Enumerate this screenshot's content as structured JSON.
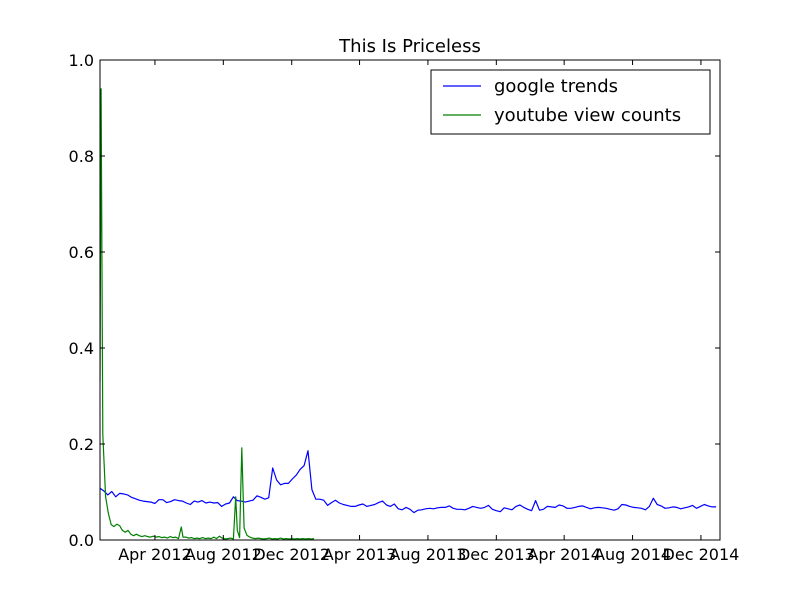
{
  "chart_data": {
    "type": "line",
    "title": "This Is Priceless",
    "xlabel": "",
    "ylabel": "",
    "xlim": [
      "2011-12-25",
      "2015-01-04"
    ],
    "ylim": [
      0.0,
      1.0
    ],
    "x_ticks": [
      "2012-04-01",
      "2012-08-01",
      "2012-12-01",
      "2013-04-01",
      "2013-08-01",
      "2013-12-01",
      "2014-04-01",
      "2014-08-01",
      "2014-12-01"
    ],
    "x_tick_labels": [
      "Apr 2012",
      "Aug 2012",
      "Dec 2012",
      "Apr 2013",
      "Aug 2013",
      "Dec 2013",
      "Apr 2014",
      "Aug 2014",
      "Dec 2014"
    ],
    "y_ticks": [
      0.0,
      0.2,
      0.4,
      0.6,
      0.8,
      1.0
    ],
    "y_tick_labels": [
      "0.0",
      "0.2",
      "0.4",
      "0.6",
      "0.8",
      "1.0"
    ],
    "grid": false,
    "legend_position": "top-right",
    "series": [
      {
        "name": "google trends",
        "color": "#0000ff",
        "points": [
          [
            "2011-12-25",
            0.108
          ],
          [
            "2012-01-01",
            0.102
          ],
          [
            "2012-01-08",
            0.094
          ],
          [
            "2012-01-15",
            0.101
          ],
          [
            "2012-01-22",
            0.09
          ],
          [
            "2012-01-29",
            0.097
          ],
          [
            "2012-02-05",
            0.096
          ],
          [
            "2012-02-12",
            0.094
          ],
          [
            "2012-02-19",
            0.089
          ],
          [
            "2012-02-26",
            0.086
          ],
          [
            "2012-03-04",
            0.083
          ],
          [
            "2012-03-11",
            0.081
          ],
          [
            "2012-03-18",
            0.08
          ],
          [
            "2012-03-25",
            0.079
          ],
          [
            "2012-04-01",
            0.076
          ],
          [
            "2012-04-08",
            0.084
          ],
          [
            "2012-04-15",
            0.084
          ],
          [
            "2012-04-22",
            0.078
          ],
          [
            "2012-04-29",
            0.08
          ],
          [
            "2012-05-06",
            0.084
          ],
          [
            "2012-05-13",
            0.082
          ],
          [
            "2012-05-20",
            0.081
          ],
          [
            "2012-05-27",
            0.077
          ],
          [
            "2012-06-03",
            0.074
          ],
          [
            "2012-06-10",
            0.081
          ],
          [
            "2012-06-17",
            0.079
          ],
          [
            "2012-06-24",
            0.082
          ],
          [
            "2012-07-01",
            0.077
          ],
          [
            "2012-07-08",
            0.079
          ],
          [
            "2012-07-15",
            0.077
          ],
          [
            "2012-07-22",
            0.078
          ],
          [
            "2012-07-29",
            0.07
          ],
          [
            "2012-08-05",
            0.075
          ],
          [
            "2012-08-12",
            0.077
          ],
          [
            "2012-08-19",
            0.09
          ],
          [
            "2012-08-26",
            0.082
          ],
          [
            "2012-09-02",
            0.081
          ],
          [
            "2012-09-09",
            0.079
          ],
          [
            "2012-09-16",
            0.081
          ],
          [
            "2012-09-23",
            0.083
          ],
          [
            "2012-09-30",
            0.092
          ],
          [
            "2012-10-07",
            0.089
          ],
          [
            "2012-10-14",
            0.085
          ],
          [
            "2012-10-21",
            0.088
          ],
          [
            "2012-10-28",
            0.15
          ],
          [
            "2012-11-04",
            0.125
          ],
          [
            "2012-11-11",
            0.115
          ],
          [
            "2012-11-18",
            0.118
          ],
          [
            "2012-11-25",
            0.118
          ],
          [
            "2012-12-02",
            0.127
          ],
          [
            "2012-12-09",
            0.135
          ],
          [
            "2012-12-16",
            0.147
          ],
          [
            "2012-12-23",
            0.155
          ],
          [
            "2012-12-30",
            0.186
          ],
          [
            "2013-01-06",
            0.105
          ],
          [
            "2013-01-13",
            0.085
          ],
          [
            "2013-01-20",
            0.085
          ],
          [
            "2013-01-27",
            0.083
          ],
          [
            "2013-02-03",
            0.072
          ],
          [
            "2013-02-10",
            0.078
          ],
          [
            "2013-02-17",
            0.083
          ],
          [
            "2013-02-24",
            0.077
          ],
          [
            "2013-03-03",
            0.074
          ],
          [
            "2013-03-10",
            0.072
          ],
          [
            "2013-03-17",
            0.07
          ],
          [
            "2013-03-24",
            0.07
          ],
          [
            "2013-03-31",
            0.073
          ],
          [
            "2013-04-07",
            0.075
          ],
          [
            "2013-04-14",
            0.07
          ],
          [
            "2013-04-21",
            0.072
          ],
          [
            "2013-04-28",
            0.074
          ],
          [
            "2013-05-05",
            0.078
          ],
          [
            "2013-05-12",
            0.081
          ],
          [
            "2013-05-19",
            0.073
          ],
          [
            "2013-05-26",
            0.07
          ],
          [
            "2013-06-02",
            0.075
          ],
          [
            "2013-06-09",
            0.065
          ],
          [
            "2013-06-16",
            0.063
          ],
          [
            "2013-06-23",
            0.068
          ],
          [
            "2013-06-30",
            0.064
          ],
          [
            "2013-07-07",
            0.057
          ],
          [
            "2013-07-14",
            0.062
          ],
          [
            "2013-07-21",
            0.063
          ],
          [
            "2013-07-28",
            0.065
          ],
          [
            "2013-08-04",
            0.066
          ],
          [
            "2013-08-11",
            0.065
          ],
          [
            "2013-08-18",
            0.067
          ],
          [
            "2013-08-25",
            0.068
          ],
          [
            "2013-09-01",
            0.068
          ],
          [
            "2013-09-08",
            0.071
          ],
          [
            "2013-09-15",
            0.066
          ],
          [
            "2013-09-22",
            0.064
          ],
          [
            "2013-09-29",
            0.064
          ],
          [
            "2013-10-06",
            0.063
          ],
          [
            "2013-10-13",
            0.066
          ],
          [
            "2013-10-20",
            0.07
          ],
          [
            "2013-10-27",
            0.068
          ],
          [
            "2013-11-03",
            0.066
          ],
          [
            "2013-11-10",
            0.068
          ],
          [
            "2013-11-17",
            0.072
          ],
          [
            "2013-11-24",
            0.064
          ],
          [
            "2013-12-01",
            0.061
          ],
          [
            "2013-12-08",
            0.059
          ],
          [
            "2013-12-15",
            0.067
          ],
          [
            "2013-12-22",
            0.065
          ],
          [
            "2013-12-29",
            0.063
          ],
          [
            "2014-01-05",
            0.07
          ],
          [
            "2014-01-12",
            0.073
          ],
          [
            "2014-01-19",
            0.068
          ],
          [
            "2014-01-26",
            0.064
          ],
          [
            "2014-02-02",
            0.061
          ],
          [
            "2014-02-09",
            0.082
          ],
          [
            "2014-02-16",
            0.062
          ],
          [
            "2014-02-23",
            0.064
          ],
          [
            "2014-03-02",
            0.07
          ],
          [
            "2014-03-09",
            0.069
          ],
          [
            "2014-03-16",
            0.068
          ],
          [
            "2014-03-23",
            0.073
          ],
          [
            "2014-03-30",
            0.071
          ],
          [
            "2014-04-06",
            0.066
          ],
          [
            "2014-04-13",
            0.066
          ],
          [
            "2014-04-20",
            0.068
          ],
          [
            "2014-04-27",
            0.07
          ],
          [
            "2014-05-04",
            0.071
          ],
          [
            "2014-05-11",
            0.068
          ],
          [
            "2014-05-18",
            0.065
          ],
          [
            "2014-05-25",
            0.067
          ],
          [
            "2014-06-01",
            0.068
          ],
          [
            "2014-06-08",
            0.067
          ],
          [
            "2014-06-15",
            0.066
          ],
          [
            "2014-06-22",
            0.064
          ],
          [
            "2014-06-29",
            0.062
          ],
          [
            "2014-07-06",
            0.065
          ],
          [
            "2014-07-13",
            0.074
          ],
          [
            "2014-07-20",
            0.073
          ],
          [
            "2014-07-27",
            0.07
          ],
          [
            "2014-08-03",
            0.068
          ],
          [
            "2014-08-10",
            0.067
          ],
          [
            "2014-08-17",
            0.066
          ],
          [
            "2014-08-24",
            0.063
          ],
          [
            "2014-08-31",
            0.07
          ],
          [
            "2014-09-07",
            0.087
          ],
          [
            "2014-09-14",
            0.074
          ],
          [
            "2014-09-21",
            0.071
          ],
          [
            "2014-09-28",
            0.066
          ],
          [
            "2014-10-05",
            0.067
          ],
          [
            "2014-10-12",
            0.069
          ],
          [
            "2014-10-19",
            0.068
          ],
          [
            "2014-10-26",
            0.065
          ],
          [
            "2014-11-02",
            0.067
          ],
          [
            "2014-11-09",
            0.069
          ],
          [
            "2014-11-16",
            0.072
          ],
          [
            "2014-11-23",
            0.066
          ],
          [
            "2014-11-30",
            0.07
          ],
          [
            "2014-12-07",
            0.074
          ],
          [
            "2014-12-14",
            0.071
          ],
          [
            "2014-12-21",
            0.069
          ],
          [
            "2014-12-28",
            0.069
          ]
        ]
      },
      {
        "name": "youtube view counts",
        "color": "#008000",
        "points": [
          [
            "2011-12-25",
            0.33
          ],
          [
            "2011-12-27",
            0.94
          ],
          [
            "2011-12-30",
            0.22
          ],
          [
            "2012-01-04",
            0.09
          ],
          [
            "2012-01-09",
            0.055
          ],
          [
            "2012-01-14",
            0.032
          ],
          [
            "2012-01-19",
            0.028
          ],
          [
            "2012-01-24",
            0.033
          ],
          [
            "2012-01-29",
            0.03
          ],
          [
            "2012-02-03",
            0.02
          ],
          [
            "2012-02-08",
            0.016
          ],
          [
            "2012-02-13",
            0.02
          ],
          [
            "2012-02-18",
            0.012
          ],
          [
            "2012-02-23",
            0.009
          ],
          [
            "2012-02-28",
            0.012
          ],
          [
            "2012-03-04",
            0.009
          ],
          [
            "2012-03-09",
            0.007
          ],
          [
            "2012-03-14",
            0.009
          ],
          [
            "2012-03-19",
            0.007
          ],
          [
            "2012-03-24",
            0.006
          ],
          [
            "2012-03-29",
            0.008
          ],
          [
            "2012-04-03",
            0.006
          ],
          [
            "2012-04-08",
            0.007
          ],
          [
            "2012-04-13",
            0.005
          ],
          [
            "2012-04-18",
            0.006
          ],
          [
            "2012-04-23",
            0.004
          ],
          [
            "2012-04-28",
            0.007
          ],
          [
            "2012-05-03",
            0.005
          ],
          [
            "2012-05-08",
            0.006
          ],
          [
            "2012-05-13",
            0.003
          ],
          [
            "2012-05-18",
            0.027
          ],
          [
            "2012-05-21",
            0.006
          ],
          [
            "2012-05-26",
            0.006
          ],
          [
            "2012-05-31",
            0.004
          ],
          [
            "2012-06-05",
            0.005
          ],
          [
            "2012-06-10",
            0.003
          ],
          [
            "2012-06-15",
            0.004
          ],
          [
            "2012-06-20",
            0.003
          ],
          [
            "2012-06-25",
            0.005
          ],
          [
            "2012-06-30",
            0.003
          ],
          [
            "2012-07-05",
            0.004
          ],
          [
            "2012-07-10",
            0.003
          ],
          [
            "2012-07-15",
            0.006
          ],
          [
            "2012-07-20",
            0.003
          ],
          [
            "2012-07-25",
            0.008
          ],
          [
            "2012-07-30",
            0.004
          ],
          [
            "2012-08-04",
            0.002
          ],
          [
            "2012-08-09",
            0.003
          ],
          [
            "2012-08-14",
            0.004
          ],
          [
            "2012-08-19",
            0.002
          ],
          [
            "2012-08-23",
            0.09
          ],
          [
            "2012-08-26",
            0.02
          ],
          [
            "2012-08-30",
            0.005
          ],
          [
            "2012-09-03",
            0.192
          ],
          [
            "2012-09-07",
            0.025
          ],
          [
            "2012-09-12",
            0.01
          ],
          [
            "2012-09-17",
            0.006
          ],
          [
            "2012-09-22",
            0.004
          ],
          [
            "2012-09-27",
            0.003
          ],
          [
            "2012-10-02",
            0.004
          ],
          [
            "2012-10-07",
            0.003
          ],
          [
            "2012-10-12",
            0.002
          ],
          [
            "2012-10-17",
            0.003
          ],
          [
            "2012-10-22",
            0.004
          ],
          [
            "2012-10-27",
            0.002
          ],
          [
            "2012-11-01",
            0.003
          ],
          [
            "2012-11-06",
            0.002
          ],
          [
            "2012-11-11",
            0.004
          ],
          [
            "2012-11-16",
            0.002
          ],
          [
            "2012-11-21",
            0.003
          ],
          [
            "2012-11-26",
            0.002
          ],
          [
            "2012-12-01",
            0.003
          ],
          [
            "2012-12-06",
            0.002
          ],
          [
            "2012-12-11",
            0.003
          ],
          [
            "2012-12-16",
            0.002
          ],
          [
            "2012-12-21",
            0.003
          ],
          [
            "2012-12-26",
            0.002
          ],
          [
            "2012-12-31",
            0.003
          ],
          [
            "2013-01-05",
            0.002
          ],
          [
            "2013-01-10",
            0.003
          ]
        ]
      }
    ]
  }
}
